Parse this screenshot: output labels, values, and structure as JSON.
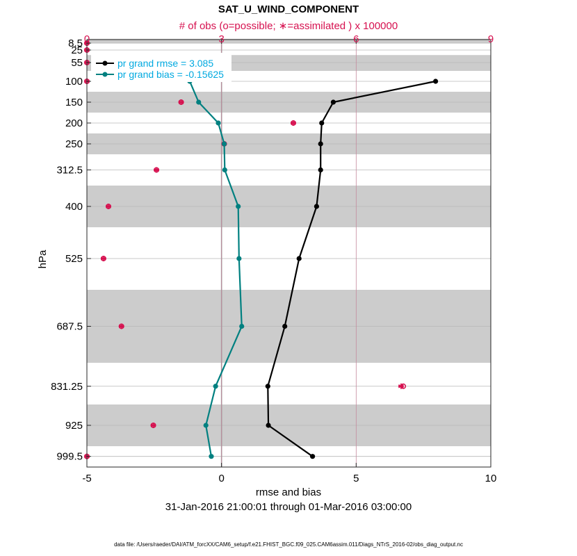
{
  "chart_data": {
    "type": "line",
    "title": "SAT_U_WIND_COMPONENT",
    "top_axis_label": "# of obs (o=possible; ∗=assimilated ) x 100000",
    "xlabel": "rmse and bias",
    "ylabel": "hPa",
    "date_range": "31-Jan-2016 21:00:01 through 01-Mar-2016 03:00:00",
    "footer": "data file: /Users/raeder/DAI/ATM_forcXX/CAM6_setup/f.e21.FHIST_BGC.f09_025.CAM6assim.011/Diags_NTrS_2016-02/obs_diag_output.nc",
    "xlim": [
      -5,
      10
    ],
    "x_ticks": [
      "-5",
      "0",
      "5",
      "10"
    ],
    "top_xlim": [
      0,
      9
    ],
    "top_ticks": [
      "0",
      "3",
      "6",
      "9"
    ],
    "y_levels": [
      8.5,
      25,
      55,
      100,
      150,
      200,
      250,
      312.5,
      400,
      525,
      687.5,
      831.25,
      925,
      999.5
    ],
    "y_tick_labels": [
      "8.5",
      "25",
      "55",
      "100",
      "150",
      "200",
      "250",
      "312.5",
      "400",
      "525",
      "687.5",
      "831.25",
      "925",
      "999.5"
    ],
    "shaded_bands_hPa": [
      [
        0,
        8.5
      ],
      [
        37,
        75
      ],
      [
        125,
        175
      ],
      [
        225,
        275
      ],
      [
        350,
        450
      ],
      [
        600,
        775
      ],
      [
        875,
        975
      ]
    ],
    "series": [
      {
        "name": "pr grand rmse = 3.085",
        "color": "#000000",
        "levels": [
          100,
          150,
          200,
          250,
          312.5,
          400,
          525,
          687.5,
          831.25,
          925,
          999.5
        ],
        "values": [
          7.95,
          4.15,
          3.72,
          3.68,
          3.68,
          3.53,
          2.88,
          2.35,
          1.72,
          1.74,
          3.38
        ]
      },
      {
        "name": "pr grand bias = -0.15625",
        "color": "#008080",
        "levels": [
          100,
          150,
          200,
          250,
          312.5,
          400,
          525,
          687.5,
          831.25,
          925,
          999.5
        ],
        "values": [
          -1.18,
          -0.85,
          -0.12,
          0.1,
          0.12,
          0.62,
          0.65,
          0.75,
          -0.22,
          -0.58,
          -0.38
        ]
      }
    ],
    "obs_counts": {
      "unit": "x 100000",
      "color": "#d6104f",
      "levels": [
        8.5,
        25,
        55,
        100,
        150,
        200,
        250,
        312.5,
        400,
        525,
        687.5,
        831.25,
        925,
        999.5
      ],
      "possible": [
        0.0,
        0.0,
        0.0,
        0.0,
        2.1,
        4.6,
        3.06,
        1.55,
        0.48,
        0.37,
        0.77,
        7.05,
        1.48,
        0.0
      ],
      "assimilated": [
        0.0,
        0.0,
        0.0,
        0.0,
        2.1,
        4.6,
        3.06,
        1.55,
        0.48,
        0.37,
        0.77,
        7.0,
        1.48,
        0.0
      ]
    }
  }
}
